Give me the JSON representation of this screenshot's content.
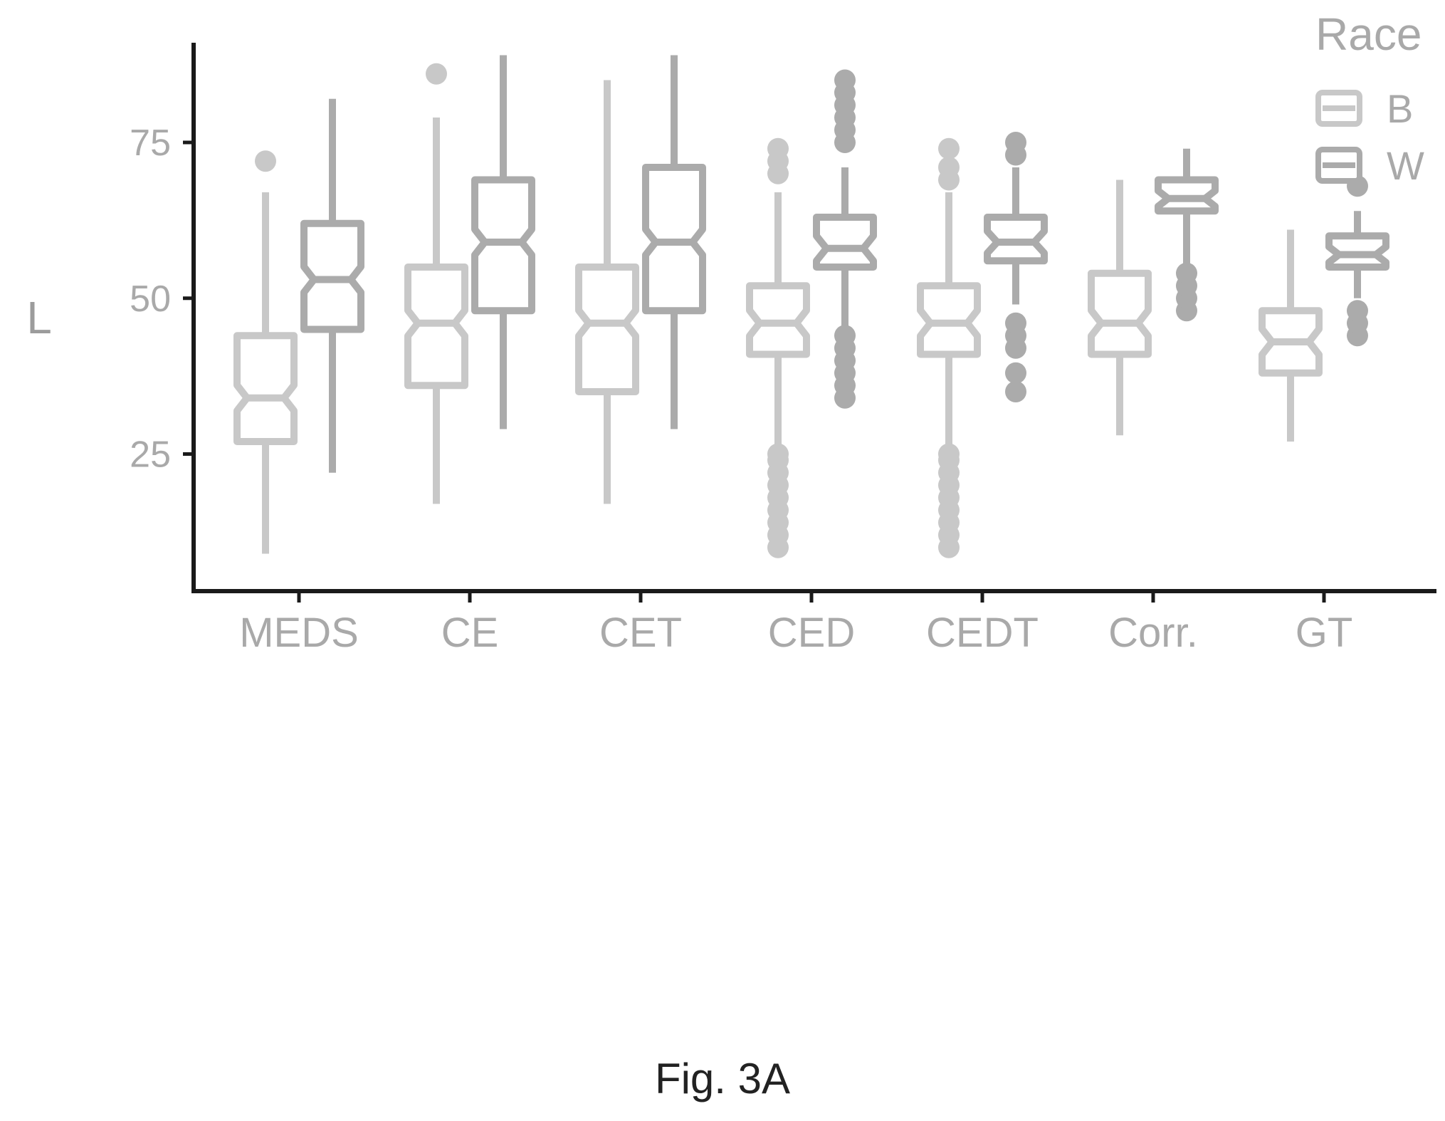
{
  "caption": "Fig. 3A",
  "colors": {
    "B": "#c8c8c8",
    "W": "#ababab",
    "axis": "#1a1a1a",
    "text": "#a9a9a9"
  },
  "chart_data": {
    "type": "box",
    "title": "",
    "xlabel": "",
    "ylabel": "L",
    "ylim": [
      3,
      91
    ],
    "yticks": [
      25,
      50,
      75
    ],
    "ytick_labels": [
      "25",
      "50",
      "75"
    ],
    "categories": [
      "MEDS",
      "CE",
      "CET",
      "CED",
      "CEDT",
      "Corr.",
      "GT"
    ],
    "legend": {
      "title": "Race",
      "placement": "top-right",
      "entries": [
        "B",
        "W"
      ]
    },
    "series": [
      {
        "name": "B",
        "boxes": [
          {
            "whisker_low": 9,
            "q1": 27,
            "median": 34,
            "q3": 44,
            "whisker_high": 67,
            "outliers": [
              72
            ]
          },
          {
            "whisker_low": 17,
            "q1": 36,
            "median": 46,
            "q3": 55,
            "whisker_high": 79,
            "outliers": [
              86
            ]
          },
          {
            "whisker_low": 17,
            "q1": 35,
            "median": 46,
            "q3": 55,
            "whisker_high": 85,
            "outliers": []
          },
          {
            "whisker_low": 26,
            "q1": 41,
            "median": 46,
            "q3": 52,
            "whisker_high": 67,
            "outliers": [
              10,
              12,
              14,
              16,
              18,
              20,
              22,
              24,
              25,
              70,
              72,
              74
            ]
          },
          {
            "whisker_low": 26,
            "q1": 41,
            "median": 46,
            "q3": 52,
            "whisker_high": 67,
            "outliers": [
              10,
              12,
              14,
              16,
              18,
              20,
              22,
              24,
              25,
              69,
              71,
              74
            ]
          },
          {
            "whisker_low": 28,
            "q1": 41,
            "median": 46,
            "q3": 54,
            "whisker_high": 69,
            "outliers": []
          },
          {
            "whisker_low": 27,
            "q1": 38,
            "median": 43,
            "q3": 48,
            "whisker_high": 61,
            "outliers": []
          }
        ]
      },
      {
        "name": "W",
        "boxes": [
          {
            "whisker_low": 22,
            "q1": 45,
            "median": 53,
            "q3": 62,
            "whisker_high": 82,
            "outliers": []
          },
          {
            "whisker_low": 29,
            "q1": 48,
            "median": 59,
            "q3": 69,
            "whisker_high": 89,
            "outliers": []
          },
          {
            "whisker_low": 29,
            "q1": 48,
            "median": 59,
            "q3": 71,
            "whisker_high": 89,
            "outliers": []
          },
          {
            "whisker_low": 45,
            "q1": 55,
            "median": 58,
            "q3": 63,
            "whisker_high": 71,
            "outliers": [
              34,
              36,
              38,
              40,
              42,
              44,
              75,
              77,
              79,
              81,
              83,
              85
            ]
          },
          {
            "whisker_low": 49,
            "q1": 56,
            "median": 59,
            "q3": 63,
            "whisker_high": 71,
            "outliers": [
              35,
              38,
              42,
              44,
              46,
              73,
              75
            ]
          },
          {
            "whisker_low": 55,
            "q1": 64,
            "median": 66,
            "q3": 69,
            "whisker_high": 74,
            "outliers": [
              48,
              50,
              52,
              54
            ]
          },
          {
            "whisker_low": 50,
            "q1": 55,
            "median": 57,
            "q3": 60,
            "whisker_high": 64,
            "outliers": [
              44,
              46,
              48,
              68
            ]
          }
        ]
      }
    ]
  }
}
